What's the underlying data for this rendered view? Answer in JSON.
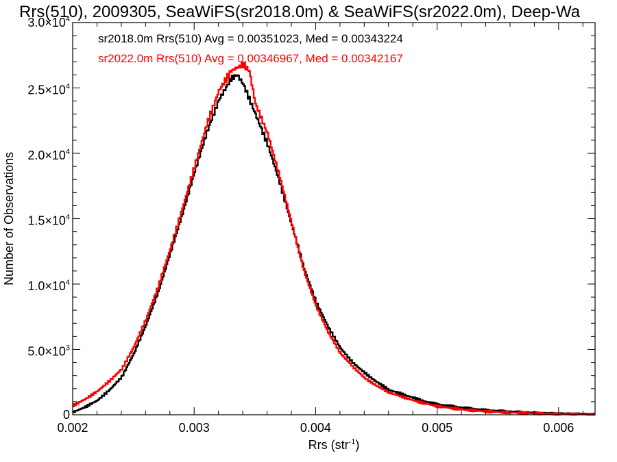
{
  "chart_data": {
    "type": "line",
    "title": "Rrs(510), 2009305, SeaWiFS(sr2018.0m) & SeaWiFS(sr2022.0m), Deep-Wa",
    "xlabel_base": "Rrs (str",
    "xlabel_sup": "-1",
    "xlabel_end": ")",
    "ylabel": "Number of Observations",
    "xlim": [
      0.002,
      0.0063
    ],
    "ylim": [
      0,
      30000
    ],
    "x_ticks": [
      {
        "value": 0.002,
        "label": "0.002"
      },
      {
        "value": 0.003,
        "label": "0.003"
      },
      {
        "value": 0.004,
        "label": "0.004"
      },
      {
        "value": 0.005,
        "label": "0.005"
      },
      {
        "value": 0.006,
        "label": "0.006"
      }
    ],
    "y_ticks": [
      {
        "value": 0,
        "mant": "0",
        "exp": ""
      },
      {
        "value": 5000,
        "mant": "5.0×10",
        "exp": "3"
      },
      {
        "value": 10000,
        "mant": "1.0×10",
        "exp": "4"
      },
      {
        "value": 15000,
        "mant": "1.5×10",
        "exp": "4"
      },
      {
        "value": 20000,
        "mant": "2.0×10",
        "exp": "4"
      },
      {
        "value": 25000,
        "mant": "2.5×10",
        "exp": "4"
      },
      {
        "value": 30000,
        "mant": "3.0×10",
        "exp": "4"
      }
    ],
    "annotations": [
      {
        "text": "sr2018.0m Rrs(510) Avg = 0.00351023, Med = 0.00343224",
        "color": "#000000"
      },
      {
        "text": "sr2022.0m Rrs(510) Avg = 0.00346967, Med = 0.00342167",
        "color": "#ff0000"
      }
    ],
    "series": [
      {
        "color": "#000000",
        "x": [
          0.002,
          0.0021,
          0.0022,
          0.0023,
          0.0024,
          0.0025,
          0.0026,
          0.0027,
          0.0028,
          0.0029,
          0.003,
          0.0031,
          0.0032,
          0.0033,
          0.00335,
          0.0034,
          0.0035,
          0.0036,
          0.0037,
          0.0038,
          0.0039,
          0.004,
          0.0041,
          0.0042,
          0.0043,
          0.0044,
          0.0045,
          0.0046,
          0.0047,
          0.0048,
          0.0049,
          0.005,
          0.0052,
          0.0054,
          0.0056,
          0.0058,
          0.006,
          0.0063
        ],
        "y": [
          200,
          600,
          1100,
          1900,
          2900,
          4700,
          6900,
          9400,
          12400,
          15400,
          18600,
          21600,
          24100,
          25700,
          26000,
          25300,
          23000,
          20700,
          17800,
          14500,
          11200,
          8600,
          6700,
          5100,
          4000,
          3200,
          2500,
          1900,
          1600,
          1300,
          1000,
          800,
          550,
          350,
          250,
          150,
          100,
          50
        ]
      },
      {
        "color": "#ff0000",
        "x": [
          0.002,
          0.0021,
          0.0022,
          0.0023,
          0.0024,
          0.0025,
          0.0026,
          0.0027,
          0.0028,
          0.0029,
          0.003,
          0.0031,
          0.0032,
          0.0033,
          0.0034,
          0.00345,
          0.0035,
          0.0036,
          0.0037,
          0.0038,
          0.0039,
          0.004,
          0.0041,
          0.0042,
          0.0043,
          0.0044,
          0.0045,
          0.0046,
          0.0047,
          0.0048,
          0.0049,
          0.005,
          0.0052,
          0.0054,
          0.0056,
          0.0058,
          0.006,
          0.0063
        ],
        "y": [
          700,
          1200,
          1800,
          2600,
          3500,
          5200,
          7300,
          9800,
          12700,
          15800,
          19000,
          22200,
          24800,
          26300,
          26800,
          26300,
          23800,
          21500,
          18200,
          14600,
          11000,
          8300,
          6300,
          4700,
          3700,
          2800,
          2200,
          1700,
          1400,
          1100,
          850,
          650,
          400,
          250,
          170,
          100,
          60,
          30
        ]
      }
    ]
  }
}
